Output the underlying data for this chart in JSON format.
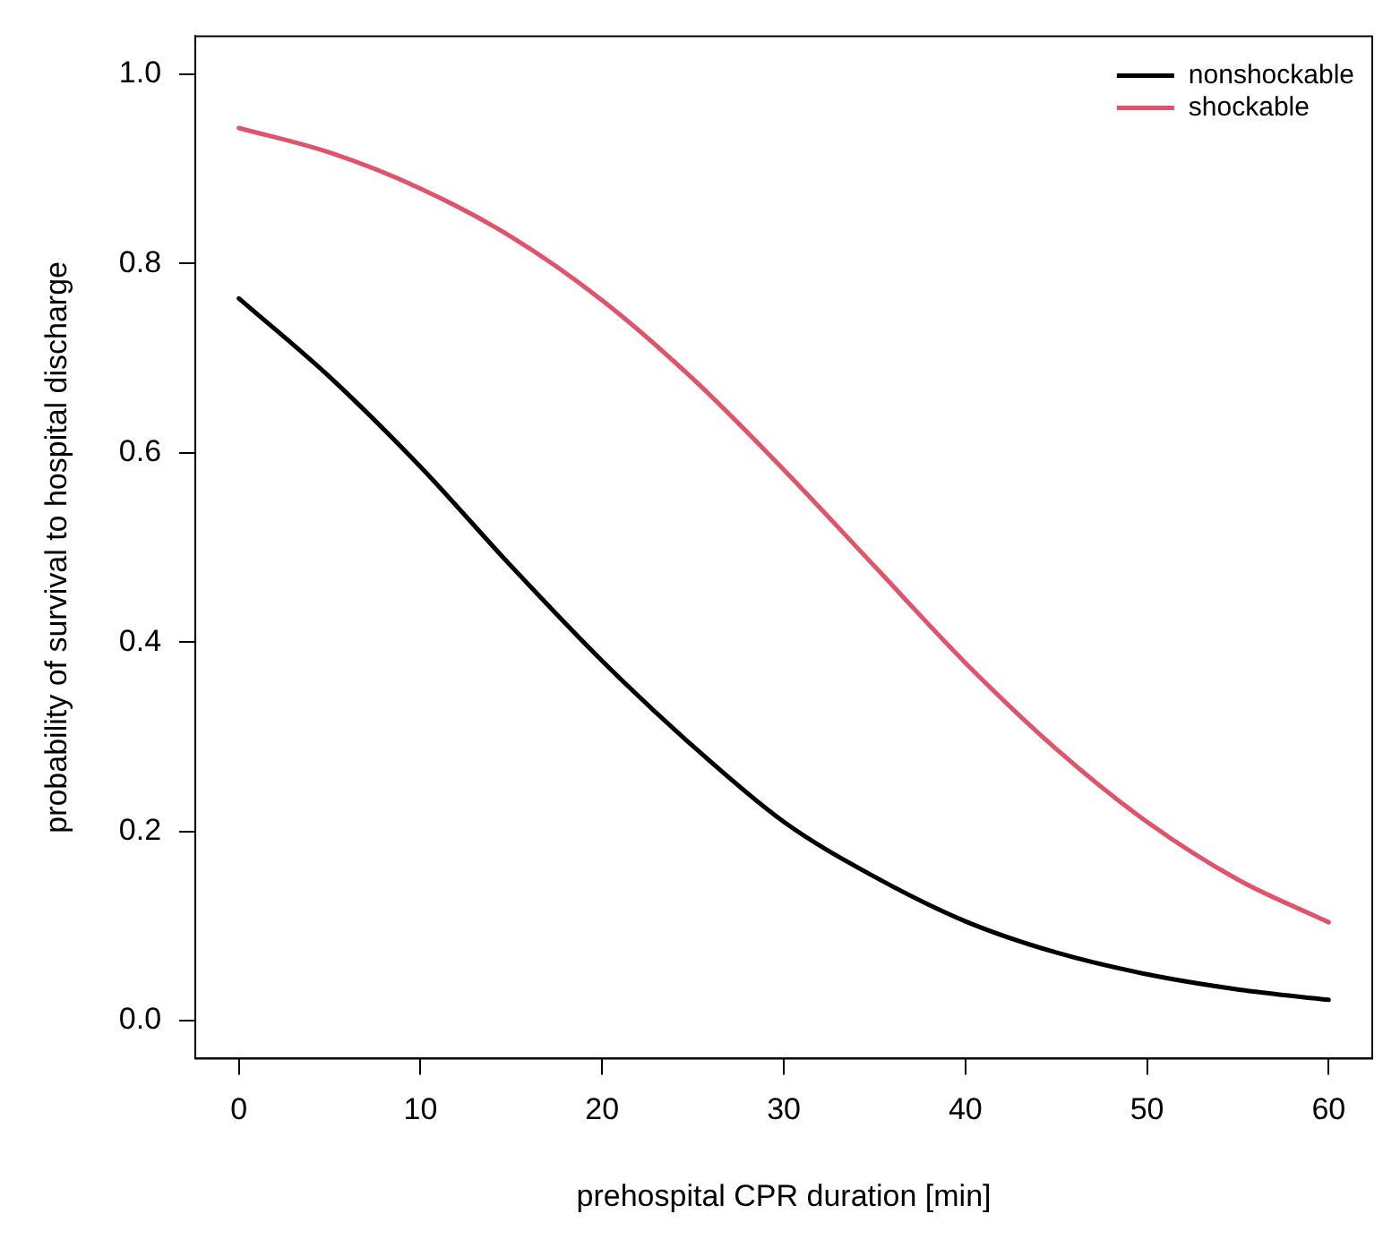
{
  "chart_data": {
    "type": "line",
    "xlabel": "prehospital CPR duration [min]",
    "ylabel": "probability of survival to hospital discharge",
    "x": [
      0,
      5,
      10,
      15,
      20,
      25,
      30,
      35,
      40,
      45,
      50,
      55,
      60
    ],
    "series": [
      {
        "name": "nonshockable",
        "color": "#000000",
        "values": [
          0.763,
          0.68,
          0.585,
          0.48,
          0.38,
          0.29,
          0.21,
          0.152,
          0.105,
          0.072,
          0.049,
          0.033,
          0.022
        ]
      },
      {
        "name": "shockable",
        "color": "#df536b",
        "values": [
          0.943,
          0.917,
          0.879,
          0.828,
          0.761,
          0.678,
          0.582,
          0.48,
          0.378,
          0.287,
          0.21,
          0.149,
          0.104
        ]
      }
    ],
    "xlim": [
      -2.4,
      62.4
    ],
    "xticks": [
      0,
      10,
      20,
      30,
      40,
      50,
      60
    ],
    "ylim": [
      -0.04,
      1.04
    ],
    "yticks": [
      {
        "value": 0,
        "label": "0.0"
      },
      {
        "value": 0.2,
        "label": "0.2"
      },
      {
        "value": 0.4,
        "label": "0.4"
      },
      {
        "value": 0.6,
        "label": "0.6"
      },
      {
        "value": 0.8,
        "label": "0.8"
      },
      {
        "value": 1,
        "label": "1.0"
      }
    ],
    "grid": false,
    "legend": "top right",
    "marker": "none",
    "line_style": "solid"
  }
}
